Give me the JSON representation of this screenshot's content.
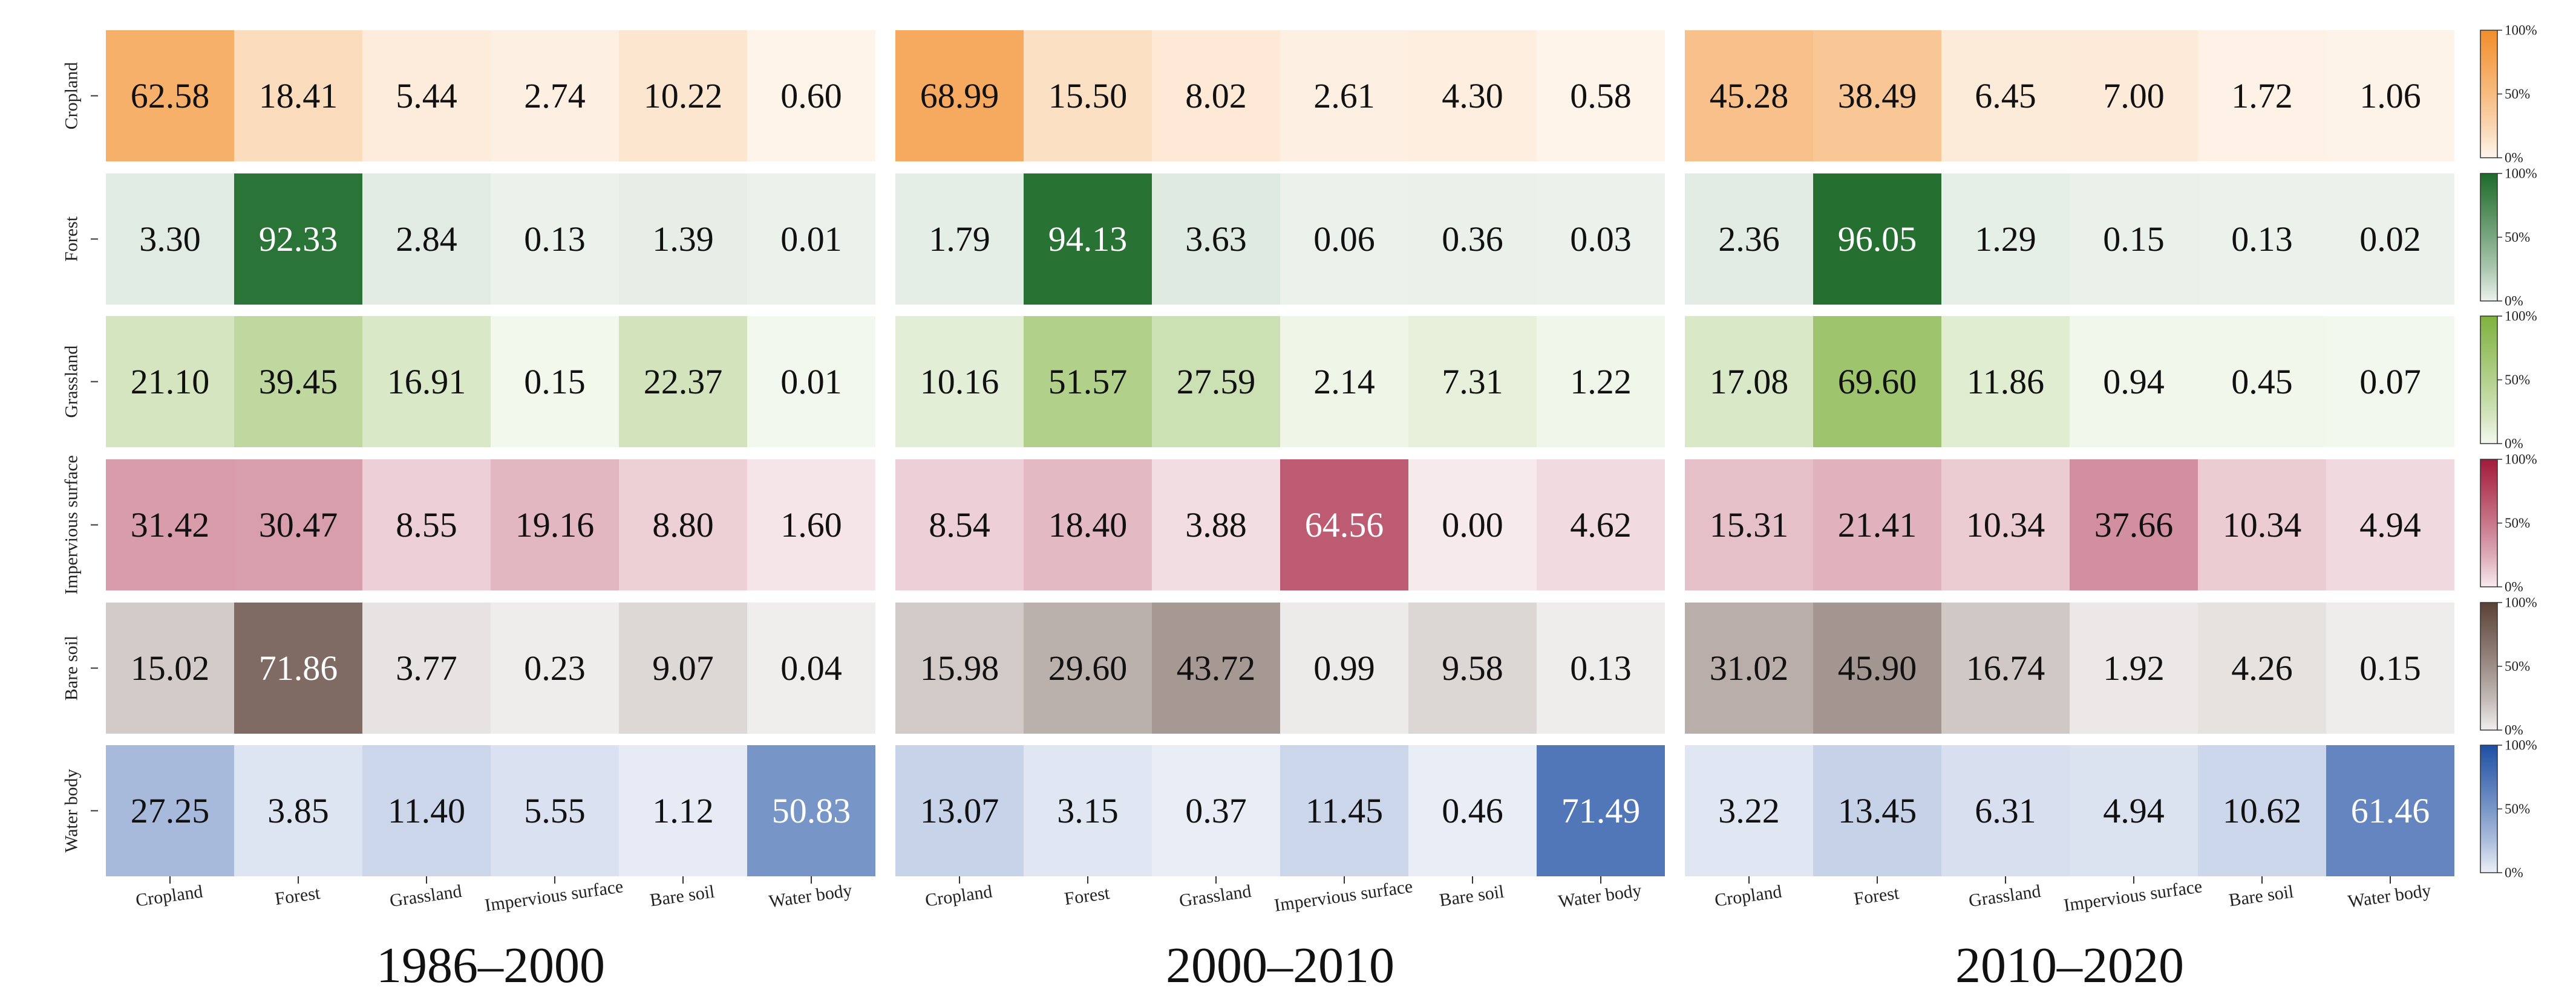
{
  "chart_data": {
    "type": "heatmap",
    "title": "",
    "row_labels": [
      "Cropland",
      "Forest",
      "Grassland",
      "Impervious surface",
      "Bare soil",
      "Water body"
    ],
    "column_labels": [
      "Cropland",
      "Forest",
      "Grassland",
      "Impervious surface",
      "Bare soil",
      "Water body"
    ],
    "colorbar_ticks": [
      "100%",
      "50%",
      "0%"
    ],
    "value_range": [
      0,
      100
    ],
    "row_colors": [
      "#f28e2b",
      "#1e6b2a",
      "#7fb23f",
      "#a31a3a",
      "#5b4136",
      "#1f4fa3"
    ],
    "periods": [
      {
        "label": "1986–2000",
        "values": [
          [
            "62.58",
            "18.41",
            "5.44",
            "2.74",
            "10.22",
            "0.60"
          ],
          [
            "3.30",
            "92.33",
            "2.84",
            "0.13",
            "1.39",
            "0.01"
          ],
          [
            "21.10",
            "39.45",
            "16.91",
            "0.15",
            "22.37",
            "0.01"
          ],
          [
            "31.42",
            "30.47",
            "8.55",
            "19.16",
            "8.80",
            "1.60"
          ],
          [
            "15.02",
            "71.86",
            "3.77",
            "0.23",
            "9.07",
            "0.04"
          ],
          [
            "27.25",
            "3.85",
            "11.40",
            "5.55",
            "1.12",
            "50.83"
          ]
        ]
      },
      {
        "label": "2000–2010",
        "values": [
          [
            "68.99",
            "15.50",
            "8.02",
            "2.61",
            "4.30",
            "0.58"
          ],
          [
            "1.79",
            "94.13",
            "3.63",
            "0.06",
            "0.36",
            "0.03"
          ],
          [
            "10.16",
            "51.57",
            "27.59",
            "2.14",
            "7.31",
            "1.22"
          ],
          [
            "8.54",
            "18.40",
            "3.88",
            "64.56",
            "0.00",
            "4.62"
          ],
          [
            "15.98",
            "29.60",
            "43.72",
            "0.99",
            "9.58",
            "0.13"
          ],
          [
            "13.07",
            "3.15",
            "0.37",
            "11.45",
            "0.46",
            "71.49"
          ]
        ]
      },
      {
        "label": "2010–2020",
        "values": [
          [
            "45.28",
            "38.49",
            "6.45",
            "7.00",
            "1.72",
            "1.06"
          ],
          [
            "2.36",
            "96.05",
            "1.29",
            "0.15",
            "0.13",
            "0.02"
          ],
          [
            "17.08",
            "69.60",
            "11.86",
            "0.94",
            "0.45",
            "0.07"
          ],
          [
            "15.31",
            "21.41",
            "10.34",
            "37.66",
            "10.34",
            "4.94"
          ],
          [
            "31.02",
            "45.90",
            "16.74",
            "1.92",
            "4.26",
            "0.15"
          ],
          [
            "3.22",
            "13.45",
            "6.31",
            "4.94",
            "10.62",
            "61.46"
          ]
        ]
      }
    ]
  }
}
